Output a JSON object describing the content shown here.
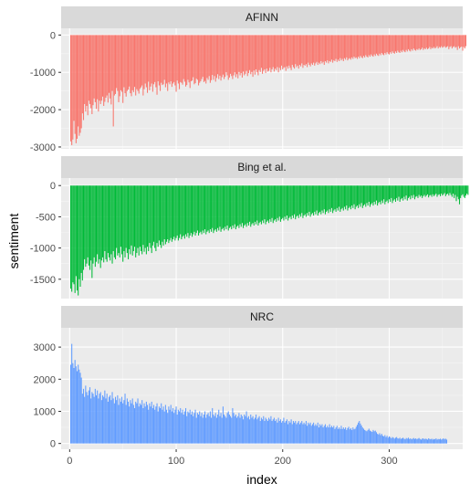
{
  "chart_data": {
    "type": "bar",
    "xlabel": "index",
    "ylabel": "sentiment",
    "x_range": [
      -8,
      369
    ],
    "x_ticks": [
      0,
      100,
      200,
      300
    ],
    "grid": true,
    "legend": "none",
    "series": [
      {
        "name": "AFINN",
        "color": "#F8766D",
        "ylim": [
          -3050,
          180
        ],
        "y_ticks": [
          0,
          -1000,
          -2000,
          -3000
        ],
        "values": [
          -2850,
          -2950,
          -2800,
          -2300,
          -2650,
          -2900,
          -2780,
          -2450,
          -2700,
          -2620,
          -2500,
          -2100,
          -2280,
          -1850,
          -2050,
          -1900,
          -2150,
          -1760,
          -1850,
          -1960,
          -2120,
          -1880,
          -1700,
          -1800,
          -1980,
          -1720,
          -2050,
          -1760,
          -1850,
          -1760,
          -1650,
          -1900,
          -1790,
          -1680,
          -1620,
          -1810,
          -1550,
          -1700,
          -1860,
          -1500,
          -2450,
          -1620,
          -1580,
          -1420,
          -1500,
          -1800,
          -1640,
          -1480,
          -1520,
          -1820,
          -1400,
          -1560,
          -1650,
          -1500,
          -1460,
          -1380,
          -1560,
          -1640,
          -1480,
          -1530,
          -1390,
          -1620,
          -1450,
          -1500,
          -1570,
          -1440,
          -1400,
          -1350,
          -1620,
          -1450,
          -1300,
          -1400,
          -1550,
          -1250,
          -1480,
          -1380,
          -1300,
          -1520,
          -1320,
          -1260,
          -1400,
          -1600,
          -1240,
          -1350,
          -1500,
          -1280,
          -1340,
          -1320,
          -1200,
          -1400,
          -1300,
          -1500,
          -1270,
          -1320,
          -1240,
          -1390,
          -1300,
          -1260,
          -1350,
          -1520,
          -1220,
          -1300,
          -1450,
          -1260,
          -1280,
          -1330,
          -1180,
          -1250,
          -1380,
          -1340,
          -1200,
          -1270,
          -1420,
          -1240,
          -1220,
          -1130,
          -1320,
          -1290,
          -1170,
          -1200,
          -1350,
          -1280,
          -1240,
          -1180,
          -1120,
          -1260,
          -1230,
          -1300,
          -1150,
          -1200,
          -1100,
          -1280,
          -1210,
          -1070,
          -1200,
          -1100,
          -1250,
          -1150,
          -1050,
          -1180,
          -1090,
          -1220,
          -1130,
          -1060,
          -1180,
          -1120,
          -1000,
          -1080,
          -1200,
          -1140,
          -1040,
          -1100,
          -1180,
          -1080,
          -1000,
          -1130,
          -1050,
          -1160,
          -990,
          -1080,
          -1020,
          -1140,
          -980,
          -1080,
          -1040,
          -960,
          -1100,
          -1020,
          -940,
          -1050,
          -990,
          -1120,
          -950,
          -1060,
          -920,
          -1000,
          -1080,
          -940,
          -990,
          -880,
          -1040,
          -960,
          -920,
          -1020,
          -900,
          -980,
          -960,
          -880,
          -1000,
          -920,
          -860,
          -980,
          -900,
          -940,
          -860,
          -1000,
          -880,
          -940,
          -820,
          -920,
          -880,
          -860,
          -960,
          -840,
          -900,
          -820,
          -880,
          -940,
          -800,
          -860,
          -900,
          -780,
          -860,
          -820,
          -900,
          -800,
          -840,
          -760,
          -880,
          -800,
          -820,
          -780,
          -860,
          -740,
          -800,
          -840,
          -760,
          -800,
          -740,
          -820,
          -760,
          -720,
          -800,
          -740,
          -780,
          -700,
          -760,
          -720,
          -800,
          -700,
          -740,
          -680,
          -760,
          -700,
          -720,
          -660,
          -740,
          -680,
          -700,
          -640,
          -720,
          -660,
          -700,
          -620,
          -680,
          -640,
          -700,
          -620,
          -660,
          -600,
          -680,
          -640,
          -620,
          -660,
          -600,
          -640,
          -580,
          -620,
          -600,
          -640,
          -580,
          -620,
          -560,
          -600,
          -620,
          -560,
          -600,
          -540,
          -580,
          -600,
          -540,
          -580,
          -520,
          -560,
          -580,
          -520,
          -560,
          -500,
          -540,
          -560,
          -500,
          -540,
          -480,
          -520,
          -540,
          -480,
          -520,
          -460,
          -500,
          -520,
          -460,
          -500,
          -440,
          -480,
          -500,
          -440,
          -480,
          -420,
          -460,
          -480,
          -420,
          -460,
          -400,
          -440,
          -460,
          -400,
          -440,
          -380,
          -420,
          -440,
          -380,
          -420,
          -360,
          -400,
          -420,
          -380,
          -400,
          -360,
          -400,
          -380,
          -340,
          -400,
          -360,
          -380,
          -340,
          -380,
          -360,
          -320,
          -380,
          -340,
          -360,
          -320,
          -360,
          -340,
          -300,
          -360,
          -320,
          -340,
          -300,
          -340,
          -320,
          -300,
          -340,
          -320,
          -300,
          -380,
          -320,
          -300,
          -360,
          -320,
          -300,
          -340,
          -320,
          -400,
          -300,
          -360,
          -330,
          -310,
          -420,
          -320,
          -360,
          -300
        ]
      },
      {
        "name": "Bing et al.",
        "color": "#00BA38",
        "ylim": [
          -1810,
          120
        ],
        "y_ticks": [
          0,
          -500,
          -1000,
          -1500
        ],
        "values": [
          -1650,
          -1700,
          -1550,
          -1580,
          -1720,
          -1450,
          -1680,
          -1760,
          -1500,
          -1620,
          -1400,
          -1520,
          -1350,
          -1180,
          -1300,
          -1250,
          -1150,
          -1280,
          -1350,
          -1200,
          -1480,
          -1250,
          -1150,
          -1300,
          -1220,
          -1100,
          -1250,
          -1180,
          -1320,
          -1200,
          -1150,
          -1230,
          -1050,
          -1180,
          -1220,
          -1080,
          -1150,
          -1200,
          -1100,
          -1250,
          -1050,
          -1150,
          -1180,
          -1000,
          -1120,
          -1080,
          -1150,
          -980,
          -1100,
          -1220,
          -1050,
          -1150,
          -1000,
          -1080,
          -1180,
          -1020,
          -1100,
          -960,
          -1120,
          -1050,
          -980,
          -1150,
          -1080,
          -1000,
          -1120,
          -980,
          -1050,
          -1100,
          -950,
          -1060,
          -1000,
          -1100,
          -980,
          -1050,
          -920,
          -1000,
          -1080,
          -960,
          -900,
          -1000,
          -1050,
          -920,
          -980,
          -880,
          -950,
          -1000,
          -900,
          -960,
          -860,
          -940,
          -900,
          -860,
          -920,
          -880,
          -840,
          -900,
          -860,
          -820,
          -880,
          -840,
          -800,
          -880,
          -840,
          -780,
          -860,
          -820,
          -800,
          -850,
          -780,
          -820,
          -760,
          -840,
          -800,
          -760,
          -820,
          -780,
          -740,
          -800,
          -760,
          -720,
          -800,
          -760,
          -740,
          -780,
          -720,
          -760,
          -700,
          -780,
          -740,
          -720,
          -760,
          -700,
          -740,
          -680,
          -760,
          -720,
          -700,
          -740,
          -680,
          -720,
          -660,
          -740,
          -700,
          -680,
          -720,
          -660,
          -700,
          -640,
          -720,
          -680,
          -660,
          -700,
          -640,
          -680,
          -620,
          -700,
          -660,
          -640,
          -680,
          -620,
          -660,
          -600,
          -680,
          -640,
          -620,
          -660,
          -600,
          -640,
          -580,
          -660,
          -620,
          -600,
          -640,
          -580,
          -620,
          -560,
          -640,
          -600,
          -580,
          -620,
          -560,
          -600,
          -540,
          -620,
          -580,
          -560,
          -600,
          -540,
          -580,
          -520,
          -600,
          -560,
          -540,
          -580,
          -520,
          -560,
          -500,
          -580,
          -540,
          -520,
          -560,
          -500,
          -540,
          -480,
          -560,
          -520,
          -500,
          -540,
          -480,
          -520,
          -460,
          -540,
          -500,
          -480,
          -520,
          -460,
          -500,
          -440,
          -520,
          -480,
          -460,
          -500,
          -440,
          -480,
          -420,
          -500,
          -460,
          -440,
          -480,
          -420,
          -460,
          -400,
          -480,
          -440,
          -420,
          -460,
          -400,
          -440,
          -380,
          -460,
          -420,
          -400,
          -440,
          -380,
          -420,
          -360,
          -440,
          -400,
          -380,
          -420,
          -360,
          -400,
          -340,
          -420,
          -380,
          -360,
          -400,
          -340,
          -380,
          -320,
          -400,
          -360,
          -340,
          -380,
          -320,
          -360,
          -300,
          -380,
          -340,
          -320,
          -360,
          -300,
          -340,
          -280,
          -360,
          -320,
          -300,
          -340,
          -280,
          -320,
          -260,
          -340,
          -300,
          -280,
          -320,
          -260,
          -300,
          -240,
          -320,
          -280,
          -260,
          -300,
          -240,
          -280,
          -220,
          -300,
          -260,
          -240,
          -280,
          -220,
          -260,
          -200,
          -280,
          -240,
          -220,
          -260,
          -200,
          -240,
          -180,
          -260,
          -220,
          -200,
          -240,
          -180,
          -220,
          -160,
          -240,
          -200,
          -180,
          -220,
          -160,
          -200,
          -150,
          -220,
          -180,
          -170,
          -200,
          -150,
          -180,
          -160,
          -200,
          -170,
          -150,
          -180,
          -160,
          -140,
          -190,
          -160,
          -150,
          -180,
          -140,
          -170,
          -150,
          -130,
          -180,
          -150,
          -140,
          -170,
          -130,
          -160,
          -140,
          -120,
          -170,
          -140,
          -130,
          -160,
          -120,
          -150,
          -180,
          -130,
          -200,
          -150,
          -250,
          -180,
          -220,
          -300,
          -200,
          -160,
          -140,
          -180,
          -200,
          -160,
          -130,
          -150
        ]
      },
      {
        "name": "NRC",
        "color": "#619CFF",
        "ylim": [
          -180,
          3600
        ],
        "y_ticks": [
          0,
          1000,
          2000,
          3000
        ],
        "values": [
          2450,
          3100,
          2500,
          2350,
          2600,
          2400,
          2250,
          2450,
          2300,
          2200,
          2050,
          1550,
          1700,
          1450,
          1800,
          1600,
          1500,
          1650,
          1750,
          1400,
          1600,
          1550,
          1450,
          1700,
          1500,
          1650,
          1400,
          1550,
          1600,
          1350,
          1500,
          1450,
          1650,
          1400,
          1550,
          1300,
          1450,
          1500,
          1350,
          1600,
          1400,
          1250,
          1450,
          1350,
          1500,
          1200,
          1400,
          1300,
          1450,
          1250,
          1350,
          1550,
          1200,
          1400,
          1300,
          1150,
          1350,
          1250,
          1400,
          1200,
          1100,
          1300,
          1250,
          1400,
          1150,
          1250,
          1200,
          1350,
          1100,
          1250,
          1150,
          1300,
          1200,
          1050,
          1250,
          1150,
          1300,
          1100,
          1200,
          1050,
          1150,
          1250,
          1000,
          1150,
          1100,
          1250,
          1050,
          1150,
          1000,
          1200,
          1050,
          950,
          1150,
          1050,
          1200,
          1000,
          1100,
          950,
          1050,
          1150,
          900,
          1050,
          1000,
          1100,
          950,
          1050,
          900,
          1000,
          1100,
          850,
          1000,
          950,
          1050,
          900,
          1000,
          850,
          950,
          1050,
          800,
          950,
          900,
          1000,
          850,
          950,
          800,
          900,
          1000,
          800,
          900,
          950,
          850,
          1000,
          800,
          1100,
          900,
          850,
          950,
          800,
          900,
          1050,
          850,
          950,
          800,
          1150,
          900,
          850,
          800,
          950,
          1000,
          900,
          850,
          800,
          1100,
          950,
          850,
          900,
          800,
          850,
          950,
          800,
          900,
          850,
          750,
          900,
          850,
          1000,
          800,
          850,
          750,
          900,
          800,
          850,
          750,
          800,
          900,
          750,
          800,
          850,
          700,
          800,
          750,
          850,
          700,
          800,
          750,
          700,
          800,
          750,
          850,
          700,
          750,
          800,
          700,
          750,
          650,
          800,
          700,
          750,
          650,
          700,
          800,
          650,
          700,
          750,
          600,
          700,
          650,
          750,
          600,
          700,
          650,
          700,
          600,
          650,
          700,
          600,
          650,
          700,
          600,
          650,
          600,
          700,
          550,
          650,
          600,
          650,
          550,
          600,
          650,
          550,
          600,
          550,
          650,
          500,
          600,
          550,
          600,
          500,
          550,
          600,
          500,
          550,
          500,
          600,
          500,
          550,
          500,
          550,
          450,
          500,
          550,
          450,
          500,
          450,
          550,
          450,
          500,
          450,
          500,
          420,
          480,
          520,
          440,
          480,
          420,
          500,
          440,
          460,
          520,
          580,
          650,
          700,
          620,
          560,
          500,
          460,
          420,
          400,
          380,
          420,
          460,
          400,
          380,
          360,
          420,
          380,
          400,
          350,
          300,
          280,
          320,
          260,
          300,
          240,
          220,
          260,
          200,
          240,
          180,
          220,
          200,
          160,
          200,
          180,
          150,
          180,
          200,
          160,
          150,
          180,
          140,
          160,
          180,
          150,
          130,
          170,
          150,
          180,
          140,
          160,
          130,
          150,
          170,
          140,
          160,
          130,
          150,
          170,
          140,
          120,
          150,
          160,
          130,
          150,
          140,
          120,
          160,
          140,
          130,
          150,
          120,
          140,
          130,
          160,
          120,
          140,
          130,
          150,
          120,
          140,
          160,
          130,
          150,
          120
        ]
      }
    ]
  }
}
